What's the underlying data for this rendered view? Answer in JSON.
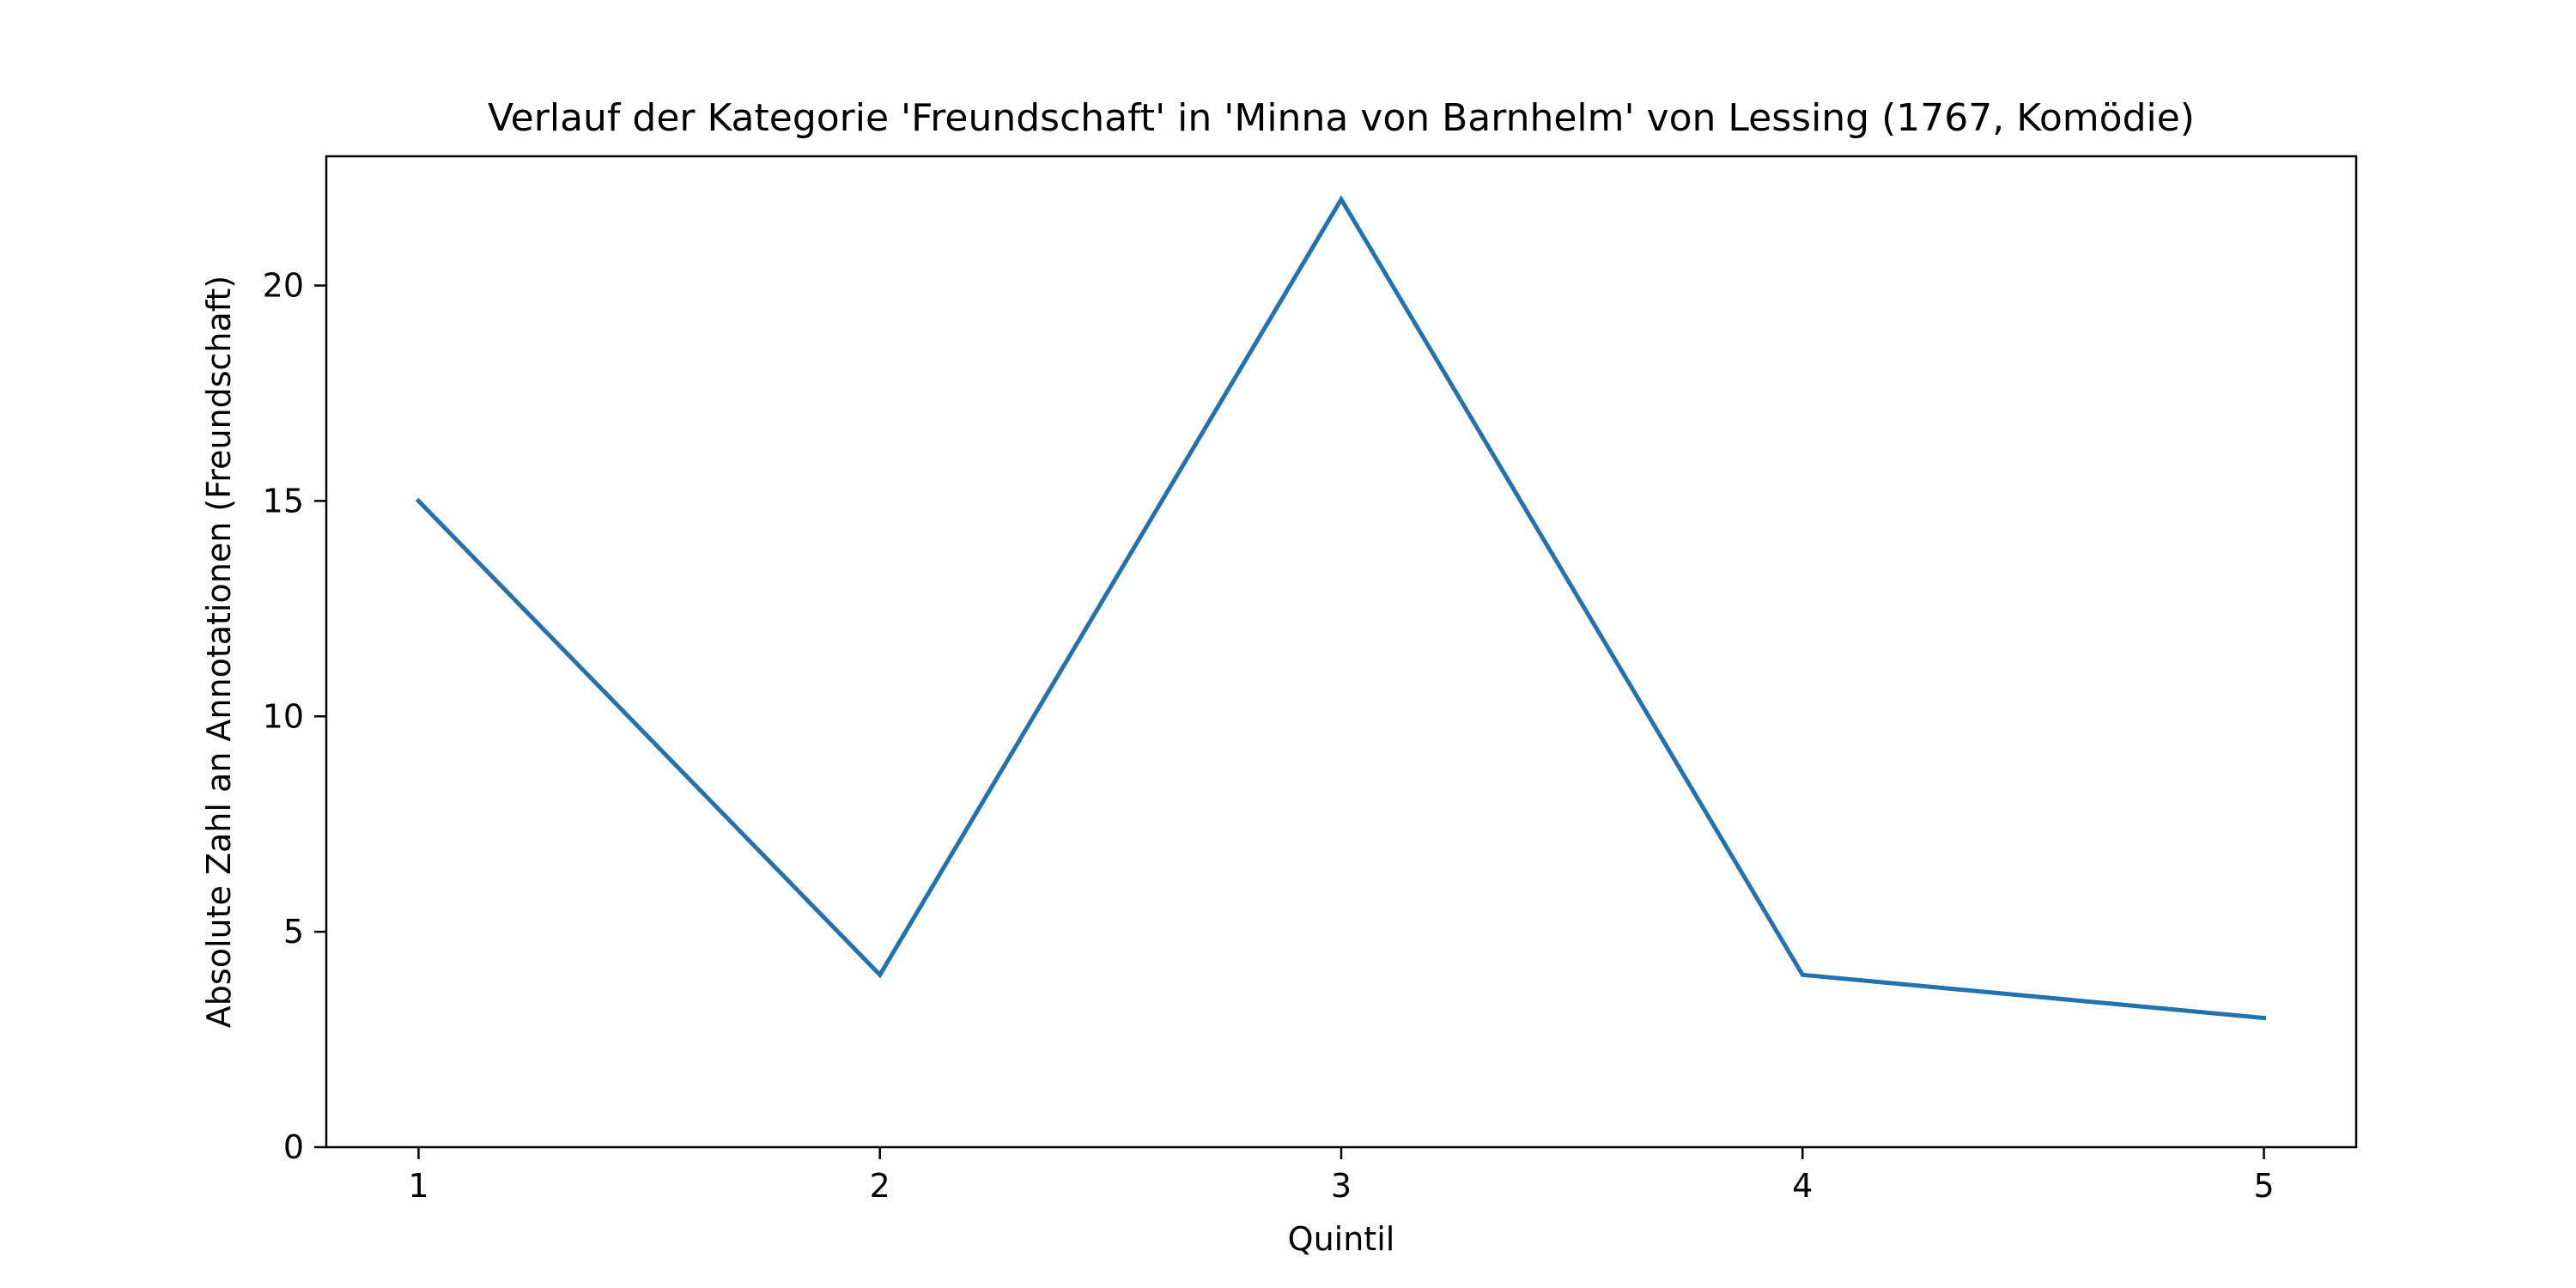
{
  "chart_data": {
    "type": "line",
    "title": "Verlauf der Kategorie 'Freundschaft' in 'Minna von Barnhelm' von Lessing (1767, Komödie)",
    "xlabel": "Quintil",
    "ylabel": "Absolute Zahl an Annotationen (Freundschaft)",
    "x": [
      1,
      2,
      3,
      4,
      5
    ],
    "x_tick_labels": [
      "1",
      "2",
      "3",
      "4",
      "5"
    ],
    "y_ticks": [
      0,
      5,
      10,
      15,
      20
    ],
    "y_tick_labels": [
      "0",
      "5",
      "10",
      "15",
      "20"
    ],
    "xlim": [
      0.8,
      5.2
    ],
    "ylim": [
      0,
      23
    ],
    "grid": false,
    "series": [
      {
        "name": "Freundschaft",
        "values": [
          15,
          4,
          22,
          4,
          3
        ],
        "color": "#2271b1"
      }
    ]
  }
}
